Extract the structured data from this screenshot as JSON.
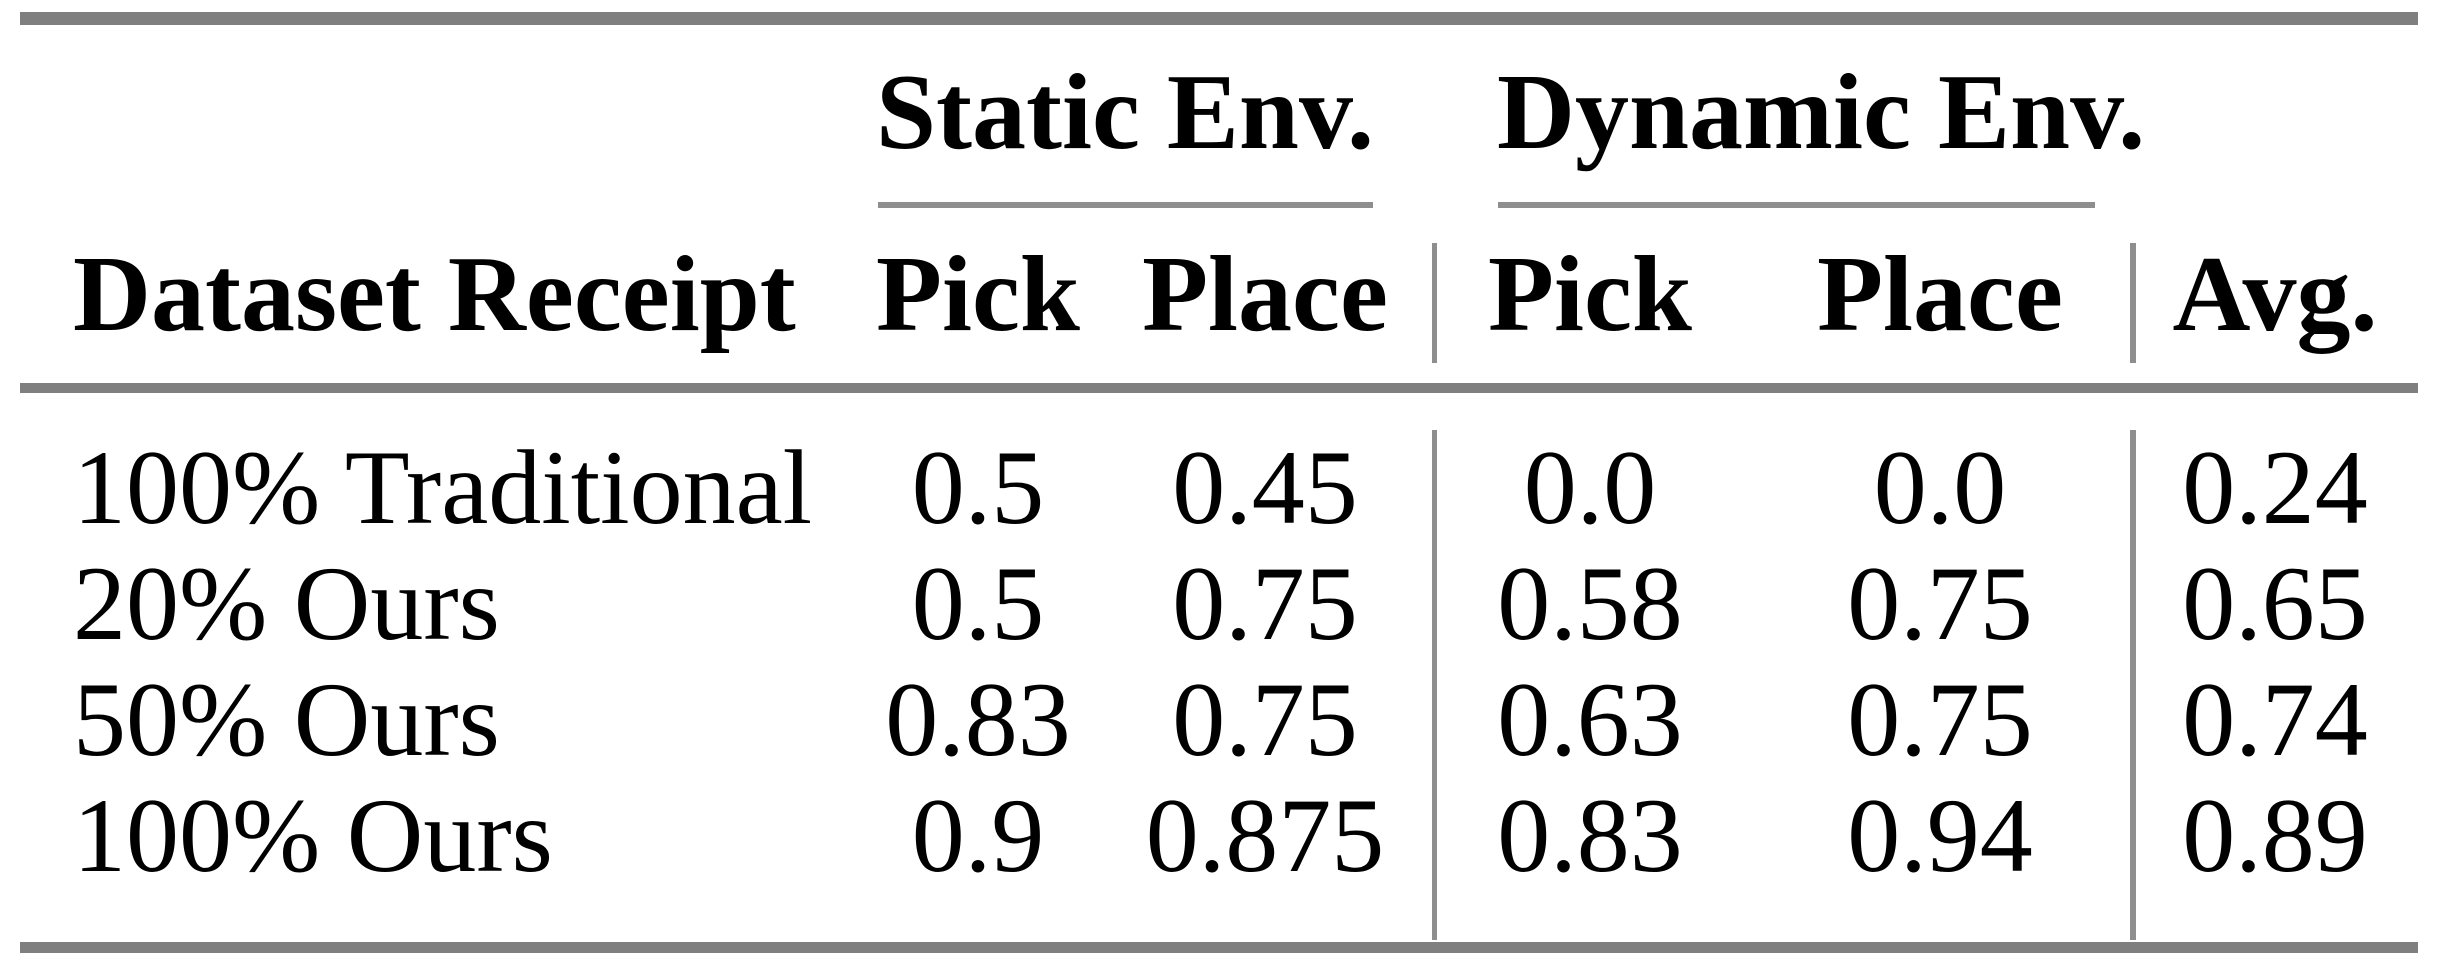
{
  "table": {
    "group_headers": {
      "static": "Static Env.",
      "dynamic": "Dynamic Env."
    },
    "column_headers": {
      "row_label": "Dataset Receipt",
      "static_pick": "Pick",
      "static_place": "Place",
      "dynamic_pick": "Pick",
      "dynamic_place": "Place",
      "avg": "Avg."
    },
    "rows": [
      {
        "label": "100% Traditional",
        "values": [
          "0.5",
          "0.45",
          "0.0",
          "0.0",
          "0.24"
        ]
      },
      {
        "label": "20% Ours",
        "values": [
          "0.5",
          "0.75",
          "0.58",
          "0.75",
          "0.65"
        ]
      },
      {
        "label": "50% Ours",
        "values": [
          "0.83",
          "0.75",
          "0.63",
          "0.75",
          "0.74"
        ]
      },
      {
        "label": "100% Ours",
        "values": [
          "0.9",
          "0.875",
          "0.83",
          "0.94",
          "0.89"
        ]
      }
    ],
    "colors": {
      "heavy_rule": "#7f7f7f",
      "light_rule": "#8e8e8e",
      "text": "#000000",
      "background": "#ffffff"
    }
  }
}
